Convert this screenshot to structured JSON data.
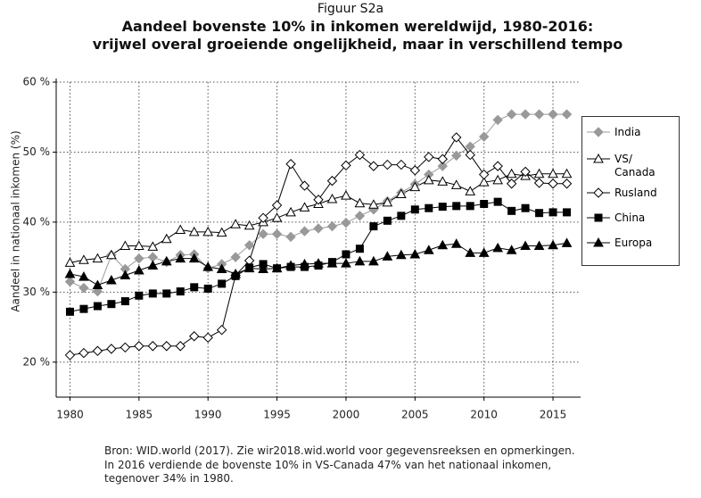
{
  "chart_data": {
    "type": "line",
    "label": "Figuur S2a",
    "title": "Aandeel bovenste 10% in inkomen wereldwijd, 1980-2016:",
    "subtitle": "vrijwel overal groeiende ongelijkheid, maar in verschillend tempo",
    "y_label": "Aandeel in nationaal inkomen (%)",
    "source": [
      "Bron: WID.world (2017). Zie wir2018.wid.world voor gegevensreeksen en opmerkingen.",
      "In 2016 verdiende de bovenste 10% in VS-Canada 47% van het nationaal inkomen,",
      "tegenover 34% in 1980."
    ],
    "x": [
      1980,
      1981,
      1982,
      1983,
      1984,
      1985,
      1986,
      1987,
      1988,
      1989,
      1990,
      1991,
      1992,
      1993,
      1994,
      1995,
      1996,
      1997,
      1998,
      1999,
      2000,
      2001,
      2002,
      2003,
      2004,
      2005,
      2006,
      2007,
      2008,
      2009,
      2010,
      2011,
      2012,
      2013,
      2014,
      2015,
      2016
    ],
    "xlim": [
      1979,
      2017
    ],
    "xticks": [
      1980,
      1985,
      1990,
      1995,
      2000,
      2005,
      2010,
      2015
    ],
    "ylim": [
      15,
      60
    ],
    "yticks": [
      {
        "value": 20,
        "label": "20 %"
      },
      {
        "value": 30,
        "label": "30 %"
      },
      {
        "value": 40,
        "label": "40 %"
      },
      {
        "value": 50,
        "label": "50 %"
      },
      {
        "value": 60,
        "label": "60 %"
      }
    ],
    "grid": true,
    "legend": "right",
    "series": [
      {
        "name": "India",
        "color": "#999999",
        "marker": "diamond",
        "filled": true,
        "values": [
          31.5,
          30.6,
          30.1,
          35.3,
          33.3,
          34.8,
          35.0,
          34.3,
          35.3,
          35.4,
          33.4,
          34.0,
          35.0,
          36.7,
          38.3,
          38.3,
          37.9,
          38.7,
          39.1,
          39.4,
          39.9,
          40.9,
          41.8,
          43.0,
          44.2,
          45.4,
          46.8,
          48.0,
          49.5,
          50.8,
          52.2,
          54.6,
          55.4,
          55.4,
          55.4,
          55.4,
          55.4
        ]
      },
      {
        "name": "VS/\nCanada",
        "color": "#000000",
        "marker": "triangle",
        "filled": false,
        "values": [
          34.2,
          34.6,
          34.8,
          35.3,
          36.6,
          36.6,
          36.5,
          37.6,
          38.9,
          38.6,
          38.6,
          38.5,
          39.7,
          39.5,
          40.0,
          40.6,
          41.4,
          42.1,
          42.6,
          43.3,
          43.8,
          42.7,
          42.5,
          42.8,
          44.0,
          45.0,
          46.0,
          45.8,
          45.3,
          44.4,
          45.7,
          46.0,
          46.9,
          46.6,
          46.9,
          46.9,
          46.9
        ]
      },
      {
        "name": "Rusland",
        "color": "#000000",
        "marker": "diamond",
        "filled": false,
        "values": [
          21.0,
          21.3,
          21.6,
          21.9,
          22.1,
          22.3,
          22.3,
          22.3,
          22.3,
          23.7,
          23.5,
          24.6,
          32.4,
          34.5,
          40.6,
          42.4,
          48.3,
          45.2,
          43.2,
          45.9,
          48.1,
          49.6,
          48.0,
          48.2,
          48.2,
          47.4,
          49.3,
          49.0,
          52.1,
          49.6,
          46.8,
          48.0,
          45.5,
          47.2,
          45.6,
          45.5,
          45.5
        ]
      },
      {
        "name": "China",
        "color": "#000000",
        "marker": "square",
        "filled": true,
        "values": [
          27.2,
          27.6,
          28.0,
          28.3,
          28.7,
          29.5,
          29.8,
          29.8,
          30.1,
          30.7,
          30.5,
          31.2,
          32.3,
          33.5,
          34.0,
          33.4,
          33.6,
          33.6,
          33.8,
          34.3,
          35.4,
          36.2,
          39.4,
          40.2,
          40.9,
          41.8,
          42.0,
          42.2,
          42.3,
          42.3,
          42.6,
          42.9,
          41.6,
          42.0,
          41.3,
          41.4,
          41.4
        ]
      },
      {
        "name": "Europa",
        "color": "#000000",
        "marker": "triangle",
        "filled": true,
        "values": [
          32.6,
          32.2,
          31.0,
          31.7,
          32.4,
          33.1,
          33.8,
          34.4,
          34.8,
          34.8,
          33.6,
          33.3,
          32.6,
          33.4,
          33.3,
          33.4,
          33.8,
          34.0,
          34.1,
          34.1,
          34.1,
          34.4,
          34.4,
          35.1,
          35.3,
          35.4,
          36.0,
          36.7,
          36.9,
          35.6,
          35.6,
          36.3,
          36.0,
          36.6,
          36.6,
          36.7,
          37.0
        ]
      }
    ]
  }
}
